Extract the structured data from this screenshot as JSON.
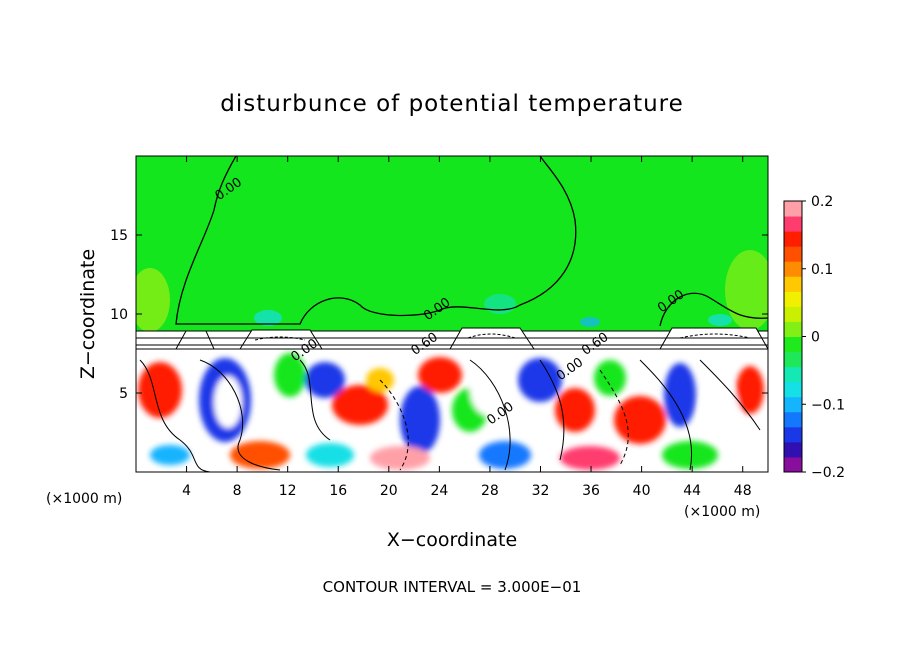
{
  "chart_data": {
    "type": "heatmap",
    "title": "disturbunce of potential temperature",
    "xlabel": "X−coordinate",
    "ylabel": "Z−coordinate",
    "x_unit_left": "(×1000 m)",
    "x_unit_right": "(×1000 m)",
    "footer": "CONTOUR INTERVAL = 3.000E−01",
    "xlim": [
      0,
      50
    ],
    "ylim": [
      0,
      20
    ],
    "x_ticks": [
      4,
      8,
      12,
      16,
      20,
      24,
      28,
      32,
      36,
      40,
      44,
      48
    ],
    "y_ticks": [
      5,
      10,
      15
    ],
    "x_tick_labels": [
      "4",
      "8",
      "12",
      "16",
      "20",
      "24",
      "28",
      "32",
      "36",
      "40",
      "44",
      "48"
    ],
    "y_tick_labels": [
      "5",
      "10",
      "15"
    ],
    "contour_labels": [
      {
        "text": "0.00",
        "x": 7.5,
        "y": 17.7
      },
      {
        "text": "0.00",
        "x": 24.0,
        "y": 10.1
      },
      {
        "text": "0.00",
        "x": 42.5,
        "y": 10.6
      },
      {
        "text": "0.00",
        "x": 13.5,
        "y": 7.5
      },
      {
        "text": "0.60",
        "x": 23.0,
        "y": 7.9
      },
      {
        "text": "0.60",
        "x": 36.5,
        "y": 7.9
      },
      {
        "text": "0.00",
        "x": 34.5,
        "y": 6.3
      },
      {
        "text": "0.00",
        "x": 29.0,
        "y": 3.5
      }
    ],
    "colorbar": {
      "min": -0.2,
      "max": 0.2,
      "tick_values": [
        0.2,
        0.1,
        0,
        -0.1,
        -0.2
      ],
      "tick_labels": [
        "0.2",
        "0.1",
        "0",
        "−0.1",
        "−0.2"
      ],
      "colors": [
        "#8a0e9e",
        "#3010b0",
        "#1a38e8",
        "#1478ff",
        "#14b4ff",
        "#14e0e6",
        "#14e8b4",
        "#1ee85a",
        "#1eea1e",
        "#82f014",
        "#c8f000",
        "#f0f000",
        "#ffc800",
        "#ff8c00",
        "#ff5000",
        "#ff1e00",
        "#ff3c6e",
        "#ffa0a8"
      ]
    },
    "regions": {
      "upper_fill": 0.0,
      "band_z_range": [
        7.8,
        9.1
      ],
      "band_fill": "white",
      "lower_z_range": [
        0,
        7.8
      ],
      "lower_description_values": [
        -0.2,
        0.2
      ]
    }
  },
  "colors": {
    "upper_green": "#14e61e",
    "white": "#ffffff"
  }
}
